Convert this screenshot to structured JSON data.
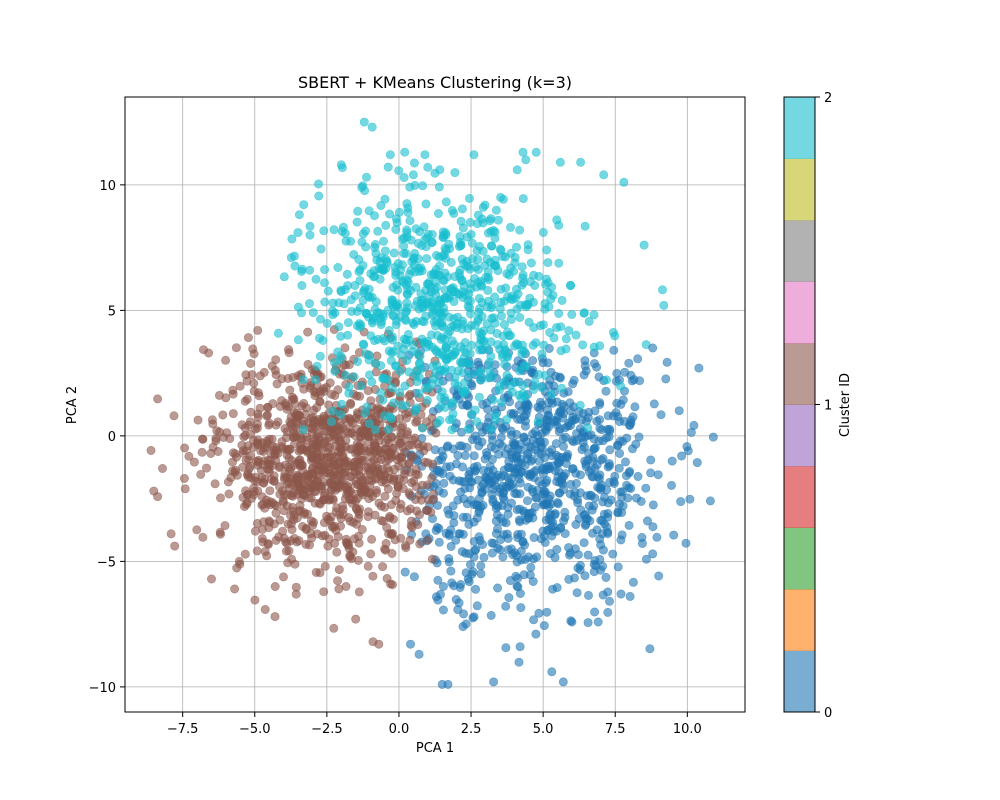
{
  "chart_data": {
    "type": "scatter",
    "title": "SBERT + KMeans Clustering (k=3)",
    "xlabel": "PCA 1",
    "ylabel": "PCA 2",
    "xlim": [
      -9.5,
      12
    ],
    "ylim": [
      -11,
      13.5
    ],
    "xticks": [
      -7.5,
      -5.0,
      -2.5,
      0.0,
      2.5,
      5.0,
      7.5,
      10.0
    ],
    "xtick_labels": [
      "−7.5",
      "−5.0",
      "−2.5",
      "0.0",
      "2.5",
      "5.0",
      "7.5",
      "10.0"
    ],
    "yticks": [
      -10,
      -5,
      0,
      5,
      10
    ],
    "ytick_labels": [
      "−10",
      "−5",
      "0",
      "5",
      "10"
    ],
    "grid": true,
    "point_alpha": 0.6,
    "colorbar": {
      "label": "Cluster ID",
      "range": [
        0,
        2
      ],
      "ticks": [
        0,
        1,
        2
      ],
      "tick_labels": [
        "0",
        "1",
        "2"
      ],
      "colors": [
        "#1f77b4",
        "#ff7f0e",
        "#2ca02c",
        "#d62728",
        "#9467bd",
        "#8c564b",
        "#e377c2",
        "#7f7f7f",
        "#bcbd22",
        "#17becf"
      ]
    },
    "clusters": [
      {
        "id": 0,
        "color": "#1f77b4",
        "count": 900,
        "center": [
          4.6,
          -1.6
        ],
        "spread": [
          2.3,
          2.6
        ]
      },
      {
        "id": 1,
        "color": "#8c564b",
        "count": 1100,
        "center": [
          -2.4,
          -0.9
        ],
        "spread": [
          1.9,
          2.0
        ]
      },
      {
        "id": 2,
        "color": "#17becf",
        "count": 800,
        "center": [
          1.3,
          5.0
        ],
        "spread": [
          2.2,
          2.4
        ]
      }
    ],
    "extreme_points": [
      {
        "cluster": 0,
        "x": 10.9,
        "y": -0.05
      },
      {
        "cluster": 0,
        "x": 10.4,
        "y": 2.7
      },
      {
        "cluster": 0,
        "x": 9.8,
        "y": -0.8
      },
      {
        "cluster": 0,
        "x": 1.5,
        "y": -9.9
      },
      {
        "cluster": 0,
        "x": 1.7,
        "y": -9.9
      },
      {
        "cluster": 0,
        "x": 5.3,
        "y": -9.4
      },
      {
        "cluster": 0,
        "x": 0.4,
        "y": -8.3
      },
      {
        "cluster": 0,
        "x": 0.7,
        "y": -8.7
      },
      {
        "cluster": 0,
        "x": 4.2,
        "y": -8.4
      },
      {
        "cluster": 0,
        "x": 7.7,
        "y": -6.3
      },
      {
        "cluster": 0,
        "x": 8.8,
        "y": -4.7
      },
      {
        "cluster": 0,
        "x": 8.8,
        "y": 3.5
      },
      {
        "cluster": 1,
        "x": -8.5,
        "y": -2.2
      },
      {
        "cluster": 1,
        "x": -8.2,
        "y": -1.3
      },
      {
        "cluster": 1,
        "x": -7.9,
        "y": -3.9
      },
      {
        "cluster": 1,
        "x": -7.8,
        "y": 0.8
      },
      {
        "cluster": 1,
        "x": -6.6,
        "y": 3.3
      },
      {
        "cluster": 1,
        "x": -6.5,
        "y": -5.7
      },
      {
        "cluster": 1,
        "x": -5.7,
        "y": -6.1
      },
      {
        "cluster": 1,
        "x": -4.9,
        "y": 4.2
      },
      {
        "cluster": 1,
        "x": -4.3,
        "y": -7.2
      },
      {
        "cluster": 1,
        "x": -1.5,
        "y": -7.3
      },
      {
        "cluster": 1,
        "x": -0.9,
        "y": -8.2
      },
      {
        "cluster": 1,
        "x": -0.7,
        "y": -8.3
      },
      {
        "cluster": 2,
        "x": -1.2,
        "y": 12.5
      },
      {
        "cluster": 2,
        "x": -2.0,
        "y": 10.8
      },
      {
        "cluster": 2,
        "x": -0.3,
        "y": 11.2
      },
      {
        "cluster": 2,
        "x": 0.2,
        "y": 11.3
      },
      {
        "cluster": 2,
        "x": 0.9,
        "y": 11.2
      },
      {
        "cluster": 2,
        "x": 2.6,
        "y": 11.2
      },
      {
        "cluster": 2,
        "x": 4.3,
        "y": 11.3
      },
      {
        "cluster": 2,
        "x": 4.4,
        "y": 11.0
      },
      {
        "cluster": 2,
        "x": 5.6,
        "y": 10.9
      },
      {
        "cluster": 2,
        "x": 6.3,
        "y": 10.9
      },
      {
        "cluster": 2,
        "x": 7.1,
        "y": 10.4
      },
      {
        "cluster": 2,
        "x": 7.8,
        "y": 10.1
      },
      {
        "cluster": 2,
        "x": -3.5,
        "y": 8.1
      },
      {
        "cluster": 2,
        "x": 8.5,
        "y": 7.6
      },
      {
        "cluster": 2,
        "x": 0.5,
        "y": 10.4
      },
      {
        "cluster": 2,
        "x": 1.0,
        "y": 10.7
      },
      {
        "cluster": 2,
        "x": 4.1,
        "y": 10.6
      }
    ]
  }
}
